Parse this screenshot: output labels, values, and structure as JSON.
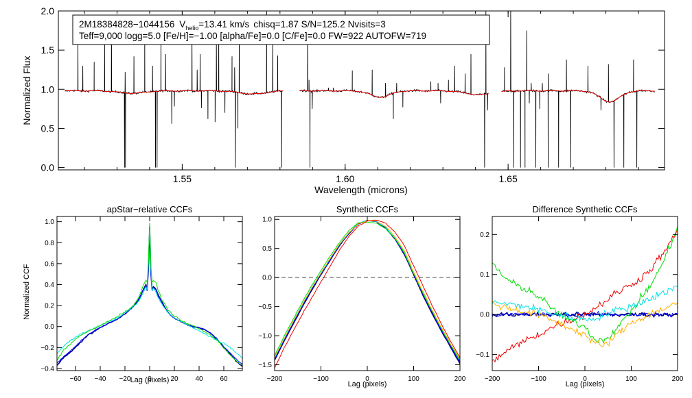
{
  "colors": {
    "axis": "#000000",
    "observed": "#000000",
    "model": "#ff0000",
    "dashed": "#555555",
    "navy": "#00008b",
    "blue": "#0000ff",
    "green": "#00dd00",
    "cyan": "#00e0e0",
    "red": "#ee0000",
    "orange": "#ffb000"
  },
  "header": {
    "star_id": "2M18384828−1044156",
    "vhelio_v": "V",
    "vhelio_sub": "helio",
    "vhelio_value": "=13.41 km/s",
    "stats": "chisq=1.87  S/N=125.2  Nvisits=3",
    "line2": "Teff=9,000 logg=5.0 [Fe/H]=−1.00 [alpha/Fe]=0.0 [C/Fe]=0.0 FW=922 AUTOFW=719"
  },
  "chart_data": [
    {
      "type": "line",
      "id": "spectrum",
      "title": "",
      "xlabel": "Wavelength (microns)",
      "ylabel": "Normalized Flux",
      "xlim": [
        1.512,
        1.698
      ],
      "ylim": [
        -0.03,
        2.0
      ],
      "xticks": [
        1.55,
        1.6,
        1.65
      ],
      "xtick_labels": [
        "1.55",
        "1.60",
        "1.65"
      ],
      "yticks": [
        0.0,
        0.5,
        1.0,
        1.5,
        2.0
      ],
      "ytick_labels": [
        "0.0",
        "0.5",
        "1.0",
        "1.5",
        "2.0"
      ],
      "chips": [
        [
          1.514,
          1.581
        ],
        [
          1.586,
          1.644
        ],
        [
          1.648,
          1.695
        ]
      ],
      "continuum_level": 0.98,
      "absorption_features": [
        [
          1.5346,
          0.03,
          0.004
        ],
        [
          1.5717,
          0.04,
          0.004
        ],
        [
          1.6108,
          0.08,
          0.003
        ],
        [
          1.641,
          0.05,
          0.004
        ],
        [
          1.6812,
          0.14,
          0.003
        ]
      ],
      "emission_spikes": [
        [
          1.518,
          1.75
        ],
        [
          1.5195,
          1.3
        ],
        [
          1.523,
          1.35
        ],
        [
          1.5262,
          1.6
        ],
        [
          1.5283,
          1.85
        ],
        [
          1.5325,
          1.22
        ],
        [
          1.5352,
          1.42
        ],
        [
          1.5385,
          1.7
        ],
        [
          1.5409,
          1.3
        ],
        [
          1.5435,
          1.85
        ],
        [
          1.5449,
          1.45
        ],
        [
          1.553,
          1.75
        ],
        [
          1.5546,
          1.25
        ],
        [
          1.5555,
          1.45
        ],
        [
          1.5605,
          1.62
        ],
        [
          1.5612,
          1.85
        ],
        [
          1.5653,
          1.42
        ],
        [
          1.5661,
          1.28
        ],
        [
          1.5675,
          1.82
        ],
        [
          1.5759,
          2.0
        ],
        [
          1.5778,
          1.68
        ],
        [
          1.5793,
          1.43
        ],
        [
          1.5885,
          1.85
        ],
        [
          1.5889,
          1.12
        ],
        [
          1.5949,
          1.02
        ],
        [
          1.5964,
          1.02
        ],
        [
          1.6022,
          1.24
        ],
        [
          1.6083,
          1.25
        ],
        [
          1.6124,
          1.08
        ],
        [
          1.6158,
          1.08
        ],
        [
          1.6263,
          1.1
        ],
        [
          1.6285,
          1.08
        ],
        [
          1.6317,
          1.12
        ],
        [
          1.6336,
          1.3
        ],
        [
          1.6368,
          1.2
        ],
        [
          1.6386,
          1.45
        ],
        [
          1.6432,
          2.0
        ],
        [
          1.6441,
          1.18
        ],
        [
          1.6489,
          1.28
        ],
        [
          1.6508,
          2.0
        ],
        [
          1.6557,
          1.75
        ],
        [
          1.6571,
          1.08
        ],
        [
          1.6605,
          1.08
        ],
        [
          1.6623,
          1.2
        ],
        [
          1.6679,
          1.38
        ],
        [
          1.6745,
          1.3
        ],
        [
          1.6808,
          1.32
        ],
        [
          1.6885,
          1.38
        ]
      ],
      "absorption_spikes": [
        [
          1.5323,
          0.0
        ],
        [
          1.5326,
          0.0
        ],
        [
          1.5418,
          0.0
        ],
        [
          1.5423,
          0.0
        ],
        [
          1.5468,
          0.56
        ],
        [
          1.5476,
          0.78
        ],
        [
          1.5559,
          0.76
        ],
        [
          1.5579,
          0.62
        ],
        [
          1.5601,
          0.58
        ],
        [
          1.5631,
          0.7
        ],
        [
          1.5663,
          0.0
        ],
        [
          1.5671,
          0.5
        ],
        [
          1.5805,
          0.0
        ],
        [
          1.5892,
          0.0
        ],
        [
          1.5899,
          0.75
        ],
        [
          1.6148,
          0.62
        ],
        [
          1.6177,
          0.77
        ],
        [
          1.6293,
          0.82
        ],
        [
          1.6428,
          0.0
        ],
        [
          1.6437,
          0.73
        ],
        [
          1.6461,
          0.8
        ],
        [
          1.6517,
          0.0
        ],
        [
          1.6538,
          0.0
        ],
        [
          1.6552,
          0.0
        ],
        [
          1.6565,
          0.82
        ],
        [
          1.6585,
          0.0
        ],
        [
          1.6597,
          0.75
        ],
        [
          1.6623,
          0.0
        ],
        [
          1.6655,
          0.0
        ],
        [
          1.6692,
          0.0
        ],
        [
          1.6785,
          0.73
        ],
        [
          1.6825,
          0.0
        ],
        [
          1.6855,
          0.0
        ],
        [
          1.6895,
          0.0
        ]
      ],
      "series": [
        {
          "name": "observed",
          "color_key": "observed"
        },
        {
          "name": "model",
          "color_key": "model"
        }
      ]
    },
    {
      "type": "line",
      "id": "apstar_ccf",
      "title": "apStar−relative CCFs",
      "xlabel": "Lag (pixels)",
      "ylabel": "Normalized CCF",
      "xlim": [
        -75,
        75
      ],
      "ylim": [
        -0.42,
        1.05
      ],
      "xticks": [
        -60,
        -40,
        -20,
        0,
        20,
        40,
        60
      ],
      "xtick_labels": [
        "−60",
        "−40",
        "−20",
        "0",
        "20",
        "40",
        "60"
      ],
      "yticks": [
        -0.4,
        -0.2,
        0.0,
        0.2,
        0.4,
        0.6,
        0.8,
        1.0
      ],
      "ytick_labels": [
        "−0.4",
        "−0.2",
        "0.0",
        "0.2",
        "0.4",
        "0.6",
        "0.8",
        "1.0"
      ],
      "x": [
        -75,
        -70,
        -65,
        -60,
        -55,
        -50,
        -45,
        -40,
        -35,
        -30,
        -25,
        -20,
        -15,
        -10,
        -7,
        -5,
        -3,
        -2,
        -1,
        0,
        1,
        2,
        3,
        5,
        7,
        10,
        15,
        20,
        25,
        30,
        35,
        40,
        45,
        50,
        55,
        60,
        65,
        70,
        75
      ],
      "series": [
        {
          "name": "navy",
          "color_key": "navy",
          "values": [
            -0.37,
            -0.3,
            -0.25,
            -0.2,
            -0.14,
            -0.08,
            -0.05,
            -0.01,
            0.02,
            0.05,
            0.08,
            0.12,
            0.17,
            0.24,
            0.3,
            0.36,
            0.4,
            0.35,
            0.55,
            0.95,
            0.5,
            0.35,
            0.38,
            0.36,
            0.3,
            0.23,
            0.13,
            0.08,
            0.05,
            0.02,
            0.0,
            -0.01,
            -0.03,
            -0.07,
            -0.13,
            -0.2,
            -0.26,
            -0.33,
            -0.38
          ]
        },
        {
          "name": "blue",
          "color_key": "blue",
          "values": [
            -0.35,
            -0.29,
            -0.24,
            -0.19,
            -0.13,
            -0.08,
            -0.04,
            -0.01,
            0.02,
            0.05,
            0.08,
            0.12,
            0.17,
            0.23,
            0.3,
            0.35,
            0.39,
            0.34,
            0.55,
            0.94,
            0.5,
            0.34,
            0.37,
            0.35,
            0.29,
            0.22,
            0.13,
            0.08,
            0.05,
            0.02,
            0.0,
            -0.01,
            -0.03,
            -0.07,
            -0.12,
            -0.19,
            -0.25,
            -0.31,
            -0.36
          ]
        },
        {
          "name": "cyan",
          "color_key": "cyan",
          "values": [
            -0.26,
            -0.19,
            -0.14,
            -0.1,
            -0.07,
            -0.04,
            -0.02,
            0.01,
            0.04,
            0.06,
            0.09,
            0.13,
            0.17,
            0.23,
            0.28,
            0.33,
            0.38,
            0.35,
            0.6,
            0.98,
            0.55,
            0.35,
            0.36,
            0.33,
            0.27,
            0.21,
            0.13,
            0.08,
            0.05,
            0.02,
            -0.01,
            -0.04,
            -0.07,
            -0.1,
            -0.13,
            -0.16,
            -0.2,
            -0.25,
            -0.3
          ]
        },
        {
          "name": "green",
          "color_key": "green",
          "values": [
            -0.32,
            -0.23,
            -0.17,
            -0.12,
            -0.08,
            -0.05,
            -0.02,
            0.01,
            0.04,
            0.07,
            0.1,
            0.14,
            0.18,
            0.25,
            0.33,
            0.4,
            0.45,
            0.42,
            0.62,
            1.0,
            0.58,
            0.42,
            0.44,
            0.42,
            0.34,
            0.26,
            0.16,
            0.1,
            0.06,
            0.03,
            0.01,
            -0.02,
            -0.05,
            -0.09,
            -0.14,
            -0.2,
            -0.27,
            -0.33,
            -0.37
          ]
        }
      ]
    },
    {
      "type": "line",
      "id": "synthetic_ccf",
      "title": "Synthetic CCFs",
      "xlabel": "Lag (pixels)",
      "ylabel": "",
      "xlim": [
        -200,
        200
      ],
      "ylim": [
        -1.6,
        1.05
      ],
      "xticks": [
        -200,
        -100,
        0,
        100,
        200
      ],
      "xtick_labels": [
        "−200",
        "−100",
        "0",
        "100",
        "200"
      ],
      "yticks": [
        -1.5,
        -1.0,
        -0.5,
        0.0,
        0.5,
        1.0
      ],
      "ytick_labels": [
        "−1.5",
        "−1.0",
        "−0.5",
        "0.0",
        "0.5",
        "1.0"
      ],
      "reference_line": 0.0,
      "x": [
        -200,
        -180,
        -160,
        -140,
        -120,
        -100,
        -80,
        -60,
        -40,
        -20,
        0,
        20,
        40,
        60,
        80,
        100,
        120,
        140,
        160,
        180,
        200
      ],
      "series": [
        {
          "name": "navy",
          "color_key": "navy",
          "values": [
            -1.42,
            -1.1,
            -0.8,
            -0.5,
            -0.22,
            0.05,
            0.3,
            0.55,
            0.75,
            0.92,
            0.98,
            0.96,
            0.85,
            0.66,
            0.4,
            0.05,
            -0.3,
            -0.62,
            -0.92,
            -1.2,
            -1.48
          ]
        },
        {
          "name": "blue",
          "color_key": "blue",
          "values": [
            -1.4,
            -1.08,
            -0.78,
            -0.48,
            -0.2,
            0.06,
            0.31,
            0.56,
            0.76,
            0.92,
            0.98,
            0.96,
            0.85,
            0.66,
            0.41,
            0.06,
            -0.28,
            -0.6,
            -0.9,
            -1.18,
            -1.45
          ]
        },
        {
          "name": "cyan",
          "color_key": "cyan",
          "values": [
            -1.38,
            -1.06,
            -0.76,
            -0.46,
            -0.18,
            0.08,
            0.33,
            0.57,
            0.77,
            0.93,
            0.98,
            0.96,
            0.86,
            0.68,
            0.43,
            0.08,
            -0.26,
            -0.58,
            -0.88,
            -1.16,
            -1.43
          ]
        },
        {
          "name": "green",
          "color_key": "green",
          "values": [
            -1.35,
            -1.02,
            -0.72,
            -0.42,
            -0.14,
            0.12,
            0.37,
            0.6,
            0.8,
            0.94,
            0.95,
            0.93,
            0.84,
            0.67,
            0.42,
            0.07,
            -0.27,
            -0.58,
            -0.88,
            -1.16,
            -1.42
          ]
        },
        {
          "name": "red",
          "color_key": "red",
          "values": [
            -1.55,
            -1.22,
            -0.92,
            -0.63,
            -0.35,
            -0.08,
            0.2,
            0.47,
            0.7,
            0.88,
            0.97,
            0.99,
            0.93,
            0.78,
            0.55,
            0.2,
            -0.14,
            -0.48,
            -0.8,
            -1.1,
            -1.38
          ]
        },
        {
          "name": "orange",
          "color_key": "orange",
          "values": [
            -1.38,
            -1.06,
            -0.76,
            -0.46,
            -0.18,
            0.08,
            0.33,
            0.57,
            0.77,
            0.92,
            0.98,
            0.97,
            0.88,
            0.7,
            0.46,
            0.1,
            -0.24,
            -0.56,
            -0.86,
            -1.14,
            -1.4
          ]
        }
      ]
    },
    {
      "type": "line",
      "id": "difference_ccf",
      "title": "Difference Synthetic CCFs",
      "xlabel": "Lag (pixels)",
      "ylabel": "",
      "xlim": [
        -200,
        200
      ],
      "ylim": [
        -0.14,
        0.245
      ],
      "xticks": [
        -200,
        -100,
        0,
        100,
        200
      ],
      "xtick_labels": [
        "−200",
        "−100",
        "0",
        "100",
        "200"
      ],
      "yticks": [
        -0.1,
        0.0,
        0.1,
        0.2
      ],
      "ytick_labels": [
        "−0.1",
        "0.0",
        "0.1",
        "0.2"
      ],
      "x": [
        -200,
        -180,
        -160,
        -140,
        -120,
        -100,
        -80,
        -60,
        -40,
        -20,
        0,
        20,
        40,
        60,
        80,
        100,
        120,
        140,
        160,
        180,
        200
      ],
      "series": [
        {
          "name": "navy",
          "color_key": "navy",
          "values": [
            0.0,
            0.0,
            0.0,
            0.0,
            0.0,
            0.0,
            0.0,
            0.0,
            0.0,
            0.0,
            0.0,
            0.0,
            0.0,
            0.0,
            0.0,
            0.0,
            0.0,
            0.0,
            0.0,
            0.0,
            0.0
          ]
        },
        {
          "name": "blue",
          "color_key": "blue",
          "values": [
            0.0,
            0.0,
            0.0,
            0.0,
            0.0,
            0.0,
            0.0,
            0.0,
            0.0,
            0.0,
            0.0,
            0.0,
            0.0,
            0.0,
            0.0,
            0.0,
            0.0,
            0.0,
            0.0,
            0.0,
            0.0
          ]
        },
        {
          "name": "red",
          "color_key": "red",
          "values": [
            -0.12,
            -0.1,
            -0.085,
            -0.072,
            -0.06,
            -0.05,
            -0.038,
            -0.025,
            -0.018,
            -0.008,
            0.0,
            0.015,
            0.03,
            0.048,
            0.062,
            0.075,
            0.09,
            0.11,
            0.14,
            0.17,
            0.21
          ]
        },
        {
          "name": "green",
          "color_key": "green",
          "values": [
            0.13,
            0.1,
            0.08,
            0.07,
            0.06,
            0.045,
            0.025,
            0.005,
            -0.01,
            -0.02,
            -0.03,
            -0.06,
            -0.065,
            -0.045,
            -0.02,
            0.01,
            0.04,
            0.07,
            0.11,
            0.16,
            0.22
          ]
        },
        {
          "name": "cyan",
          "color_key": "cyan",
          "values": [
            0.03,
            0.028,
            0.025,
            0.022,
            0.018,
            0.012,
            0.006,
            0.0,
            -0.005,
            -0.01,
            -0.012,
            -0.01,
            0.0,
            0.008,
            0.014,
            0.02,
            0.03,
            0.04,
            0.05,
            0.06,
            0.07
          ]
        },
        {
          "name": "orange",
          "color_key": "orange",
          "values": [
            0.03,
            0.02,
            0.015,
            0.01,
            0.005,
            0.0,
            -0.01,
            -0.02,
            -0.03,
            -0.04,
            -0.05,
            -0.07,
            -0.08,
            -0.06,
            -0.04,
            -0.02,
            -0.01,
            0.0,
            0.01,
            0.02,
            0.03
          ]
        }
      ]
    }
  ]
}
